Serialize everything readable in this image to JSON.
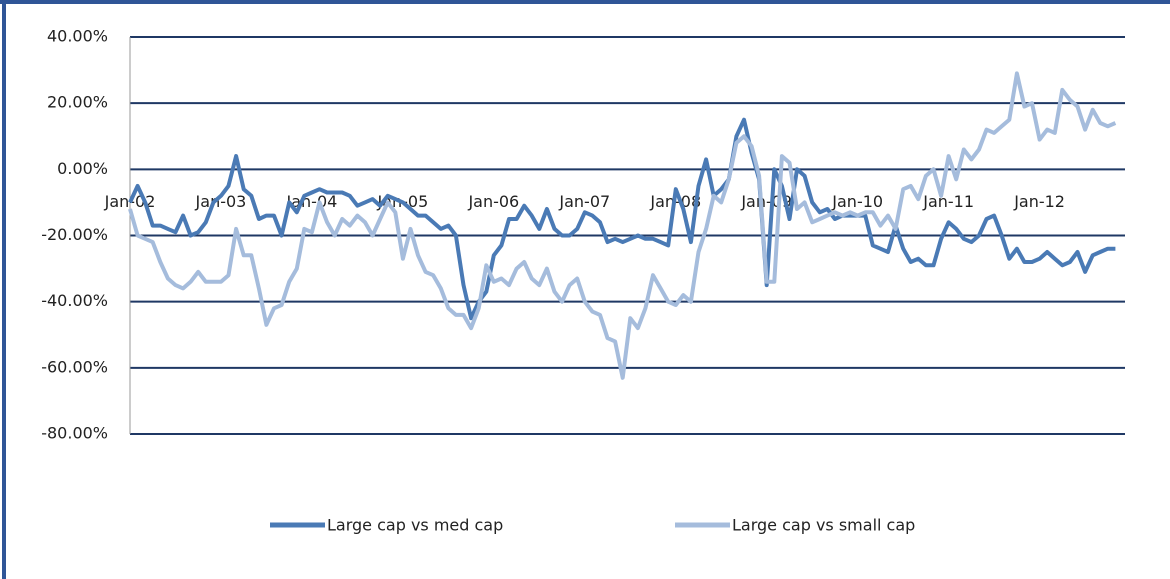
{
  "chart_data": {
    "type": "line",
    "categories": [
      "Jan-02",
      null,
      null,
      null,
      null,
      null,
      null,
      null,
      null,
      null,
      null,
      null,
      "Jan-03",
      null,
      null,
      null,
      null,
      null,
      null,
      null,
      null,
      null,
      null,
      null,
      "Jan-04",
      null,
      null,
      null,
      null,
      null,
      null,
      null,
      null,
      null,
      null,
      null,
      "Jan-05",
      null,
      null,
      null,
      null,
      null,
      null,
      null,
      null,
      null,
      null,
      null,
      "Jan-06",
      null,
      null,
      null,
      null,
      null,
      null,
      null,
      null,
      null,
      null,
      null,
      "Jan-07",
      null,
      null,
      null,
      null,
      null,
      null,
      null,
      null,
      null,
      null,
      null,
      "Jan-08",
      null,
      null,
      null,
      null,
      null,
      null,
      null,
      null,
      null,
      null,
      null,
      "Jan-09",
      null,
      null,
      null,
      null,
      null,
      null,
      null,
      null,
      null,
      null,
      null,
      "Jan-10",
      null,
      null,
      null,
      null,
      null,
      null,
      null,
      null,
      null,
      null,
      null,
      "Jan-11",
      null,
      null,
      null,
      null,
      null,
      null,
      null,
      null,
      null,
      null,
      null,
      "Jan-12",
      null,
      null,
      null,
      null,
      null,
      null,
      null,
      null,
      null,
      null
    ],
    "series": [
      {
        "name": "Large cap vs med cap",
        "color": "#4a7ab5",
        "values": [
          -10,
          -5,
          -10,
          -17,
          -17,
          -18,
          -19,
          -14,
          -20,
          -19,
          -16,
          -10,
          -8,
          -5,
          4,
          -6,
          -8,
          -15,
          -14,
          -14,
          -20,
          -10,
          -13,
          -8,
          -7,
          -6,
          -7,
          -7,
          -7,
          -8,
          -11,
          -10,
          -9,
          -11,
          -8,
          -9,
          -10,
          -12,
          -14,
          -14,
          -16,
          -18,
          -17,
          -20,
          -35,
          -45,
          -40,
          -37,
          -26,
          -23,
          -15,
          -15,
          -11,
          -14,
          -18,
          -12,
          -18,
          -20,
          -20,
          -18,
          -13,
          -14,
          -16,
          -22,
          -21,
          -22,
          -21,
          -20,
          -21,
          -21,
          -22,
          -23,
          -6,
          -12,
          -22,
          -5,
          3,
          -8,
          -6,
          -3,
          10,
          15,
          5,
          -3,
          -35,
          0,
          -5,
          -15,
          0,
          -2,
          -10,
          -13,
          -12,
          -15,
          -14,
          -14,
          -14,
          -14,
          -23,
          -24,
          -25,
          -17,
          -24,
          -28,
          -27,
          -29,
          -29,
          -21,
          -16,
          -18,
          -21,
          -22,
          -20,
          -15,
          -14,
          -20,
          -27,
          -24,
          -28,
          -28,
          -27,
          -25,
          -27,
          -29,
          -28,
          -25,
          -31,
          -26,
          -25,
          -24,
          -24
        ]
      },
      {
        "name": "Large cap vs small cap",
        "color": "#a5bcdc",
        "values": [
          -12,
          -20,
          -21,
          -22,
          -28,
          -33,
          -35,
          -36,
          -34,
          -31,
          -34,
          -34,
          -34,
          -32,
          -18,
          -26,
          -26,
          -36,
          -47,
          -42,
          -41,
          -34,
          -30,
          -18,
          -19,
          -10,
          -16,
          -20,
          -15,
          -17,
          -14,
          -16,
          -20,
          -15,
          -10,
          -13,
          -27,
          -18,
          -26,
          -31,
          -32,
          -36,
          -42,
          -44,
          -44,
          -48,
          -42,
          -29,
          -34,
          -33,
          -35,
          -30,
          -28,
          -33,
          -35,
          -30,
          -37,
          -40,
          -35,
          -33,
          -40,
          -43,
          -44,
          -51,
          -52,
          -63,
          -45,
          -48,
          -42,
          -32,
          -36,
          -40,
          -41,
          -38,
          -40,
          -25,
          -18,
          -8,
          -10,
          -3,
          8,
          10,
          7,
          -2,
          -34,
          -34,
          4,
          2,
          -12,
          -10,
          -16,
          -15,
          -14,
          -13,
          -14,
          -13,
          -14,
          -13,
          -13,
          -17,
          -14,
          -18,
          -6,
          -5,
          -9,
          -2,
          0,
          -8,
          4,
          -3,
          6,
          3,
          6,
          12,
          11,
          13,
          15,
          29,
          19,
          20,
          9,
          12,
          11,
          24,
          21,
          19,
          12,
          18,
          14,
          13,
          14
        ]
      }
    ],
    "ylim": [
      -80,
      40
    ],
    "yticks": [
      {
        "value": -80,
        "label": "-80.00%"
      },
      {
        "value": -60,
        "label": "-60.00%"
      },
      {
        "value": -40,
        "label": "-40.00%"
      },
      {
        "value": -20,
        "label": "-20.00%"
      },
      {
        "value": 0,
        "label": "0.00%"
      },
      {
        "value": 20,
        "label": "20.00%"
      },
      {
        "value": 40,
        "label": "40.00%"
      }
    ],
    "grid": true,
    "legend": "bottom"
  }
}
